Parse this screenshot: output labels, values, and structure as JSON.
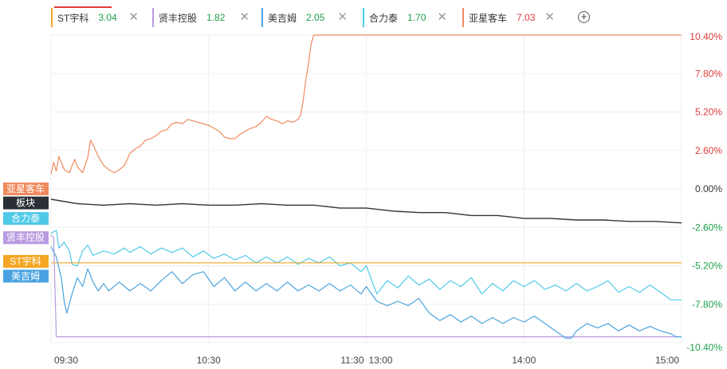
{
  "tabs": [
    {
      "name": "ST宇科",
      "value": "3.04",
      "color": "#f5a623",
      "value_color": "#1e9e4a"
    },
    {
      "name": "贤丰控股",
      "value": "1.82",
      "color": "#b89be0",
      "value_color": "#1e9e4a"
    },
    {
      "name": "美吉姆",
      "value": "2.05",
      "color": "#4aa3e0",
      "value_color": "#1e9e4a"
    },
    {
      "name": "合力泰",
      "value": "1.70",
      "color": "#4fc9e8",
      "value_color": "#1e9e4a"
    },
    {
      "name": "亚星客车",
      "value": "7.03",
      "color": "#f08a5d",
      "value_color": "#e03a3a"
    }
  ],
  "add_label": "+",
  "close_label": "✕",
  "chart_data": {
    "type": "line",
    "y_unit": "percent",
    "ylim": [
      -10.4,
      10.4
    ],
    "yticks": [
      {
        "label": "10.40%",
        "value": 10.4
      },
      {
        "label": "7.80%",
        "value": 7.8
      },
      {
        "label": "5.20%",
        "value": 5.2
      },
      {
        "label": "2.60%",
        "value": 2.6
      },
      {
        "label": "0.00%",
        "value": 0
      },
      {
        "label": "-2.60%",
        "value": -2.6
      },
      {
        "label": "-5.20%",
        "value": -5.2
      },
      {
        "label": "-7.80%",
        "value": -7.8
      },
      {
        "label": "-10.40%",
        "value": -10.4
      }
    ],
    "ytick_colors": {
      "positive": "#e03a3a",
      "zero": "#333333",
      "negative": "#1e9e4a"
    },
    "xticks": [
      {
        "label": "09:30",
        "minute": 0
      },
      {
        "label": "10:30",
        "minute": 60
      },
      {
        "label": "11:30",
        "minute": 120
      },
      {
        "label": "13:00",
        "minute": 120
      },
      {
        "label": "14:00",
        "minute": 180
      },
      {
        "label": "15:00",
        "minute": 240
      }
    ],
    "x_range_minutes": [
      0,
      240
    ],
    "grid": true,
    "series": [
      {
        "name": "亚星客车",
        "color": "#f08a5d",
        "points": [
          [
            0,
            1.0
          ],
          [
            1,
            1.8
          ],
          [
            2,
            1.2
          ],
          [
            3,
            2.2
          ],
          [
            5,
            1.3
          ],
          [
            7,
            1.1
          ],
          [
            9,
            2.0
          ],
          [
            10,
            1.5
          ],
          [
            12,
            1.1
          ],
          [
            14,
            2.1
          ],
          [
            15,
            3.3
          ],
          [
            16,
            3.0
          ],
          [
            18,
            2.2
          ],
          [
            20,
            1.6
          ],
          [
            22,
            1.3
          ],
          [
            24,
            1.1
          ],
          [
            26,
            1.3
          ],
          [
            28,
            1.6
          ],
          [
            30,
            2.4
          ],
          [
            32,
            2.7
          ],
          [
            34,
            2.9
          ],
          [
            36,
            3.3
          ],
          [
            38,
            3.4
          ],
          [
            40,
            3.6
          ],
          [
            42,
            3.9
          ],
          [
            44,
            4.0
          ],
          [
            46,
            4.4
          ],
          [
            48,
            4.5
          ],
          [
            50,
            4.4
          ],
          [
            52,
            4.7
          ],
          [
            54,
            4.6
          ],
          [
            56,
            4.5
          ],
          [
            58,
            4.4
          ],
          [
            60,
            4.3
          ],
          [
            62,
            4.1
          ],
          [
            64,
            3.9
          ],
          [
            66,
            3.5
          ],
          [
            68,
            3.4
          ],
          [
            70,
            3.4
          ],
          [
            72,
            3.7
          ],
          [
            74,
            3.9
          ],
          [
            76,
            4.1
          ],
          [
            78,
            4.2
          ],
          [
            80,
            4.5
          ],
          [
            82,
            4.9
          ],
          [
            84,
            4.7
          ],
          [
            86,
            4.6
          ],
          [
            88,
            4.4
          ],
          [
            90,
            4.6
          ],
          [
            92,
            4.5
          ],
          [
            94,
            4.7
          ],
          [
            95,
            5.0
          ],
          [
            96,
            6.0
          ],
          [
            97,
            7.4
          ],
          [
            98,
            8.5
          ],
          [
            99,
            9.8
          ],
          [
            100,
            10.4
          ],
          [
            120,
            10.4
          ],
          [
            240,
            10.4
          ]
        ]
      },
      {
        "name": "板块",
        "color": "#333333",
        "points": [
          [
            0,
            -0.7
          ],
          [
            10,
            -1.0
          ],
          [
            20,
            -1.1
          ],
          [
            30,
            -1.0
          ],
          [
            40,
            -1.1
          ],
          [
            50,
            -1.0
          ],
          [
            60,
            -1.1
          ],
          [
            70,
            -1.1
          ],
          [
            80,
            -1.0
          ],
          [
            90,
            -1.1
          ],
          [
            100,
            -1.1
          ],
          [
            110,
            -1.3
          ],
          [
            120,
            -1.3
          ],
          [
            130,
            -1.5
          ],
          [
            140,
            -1.6
          ],
          [
            150,
            -1.6
          ],
          [
            160,
            -1.8
          ],
          [
            170,
            -1.8
          ],
          [
            180,
            -2.0
          ],
          [
            190,
            -2.0
          ],
          [
            200,
            -2.1
          ],
          [
            210,
            -2.1
          ],
          [
            220,
            -2.2
          ],
          [
            230,
            -2.2
          ],
          [
            240,
            -2.3
          ]
        ]
      },
      {
        "name": "合力泰",
        "color": "#4fc9e8",
        "points": [
          [
            0,
            -3.0
          ],
          [
            2,
            -2.8
          ],
          [
            3,
            -4.0
          ],
          [
            5,
            -3.6
          ],
          [
            7,
            -4.2
          ],
          [
            8,
            -5.1
          ],
          [
            10,
            -5.2
          ],
          [
            12,
            -4.2
          ],
          [
            14,
            -3.8
          ],
          [
            16,
            -4.5
          ],
          [
            20,
            -4.2
          ],
          [
            24,
            -4.4
          ],
          [
            28,
            -4.0
          ],
          [
            30,
            -4.3
          ],
          [
            34,
            -3.9
          ],
          [
            38,
            -4.4
          ],
          [
            42,
            -4.0
          ],
          [
            46,
            -4.3
          ],
          [
            50,
            -4.0
          ],
          [
            54,
            -4.6
          ],
          [
            58,
            -4.2
          ],
          [
            62,
            -4.7
          ],
          [
            66,
            -4.4
          ],
          [
            70,
            -4.8
          ],
          [
            74,
            -4.5
          ],
          [
            78,
            -5.0
          ],
          [
            82,
            -4.6
          ],
          [
            86,
            -5.0
          ],
          [
            90,
            -4.6
          ],
          [
            94,
            -5.1
          ],
          [
            98,
            -4.7
          ],
          [
            102,
            -5.0
          ],
          [
            106,
            -4.6
          ],
          [
            110,
            -5.2
          ],
          [
            114,
            -5.0
          ],
          [
            118,
            -5.6
          ],
          [
            120,
            -5.2
          ],
          [
            124,
            -7.1
          ],
          [
            128,
            -6.2
          ],
          [
            132,
            -6.7
          ],
          [
            136,
            -5.9
          ],
          [
            140,
            -6.5
          ],
          [
            144,
            -6.1
          ],
          [
            148,
            -6.8
          ],
          [
            152,
            -6.2
          ],
          [
            156,
            -6.6
          ],
          [
            160,
            -6.0
          ],
          [
            164,
            -7.1
          ],
          [
            168,
            -6.4
          ],
          [
            172,
            -6.9
          ],
          [
            176,
            -6.2
          ],
          [
            180,
            -6.6
          ],
          [
            184,
            -6.2
          ],
          [
            188,
            -6.8
          ],
          [
            192,
            -6.5
          ],
          [
            196,
            -6.9
          ],
          [
            200,
            -6.4
          ],
          [
            204,
            -6.9
          ],
          [
            208,
            -6.6
          ],
          [
            212,
            -6.2
          ],
          [
            216,
            -7.0
          ],
          [
            220,
            -6.6
          ],
          [
            224,
            -7.0
          ],
          [
            228,
            -6.5
          ],
          [
            232,
            -7.0
          ],
          [
            236,
            -7.5
          ],
          [
            240,
            -7.5
          ]
        ]
      },
      {
        "name": "贤丰控股",
        "color": "#b89be0",
        "points": [
          [
            0,
            -3.1
          ],
          [
            1,
            -3.3
          ],
          [
            2,
            -10.0
          ],
          [
            120,
            -10.0
          ],
          [
            240,
            -10.0
          ]
        ]
      },
      {
        "name": "ST宇科",
        "color": "#f5a623",
        "points": [
          [
            0,
            -5.0
          ],
          [
            240,
            -5.0
          ]
        ]
      },
      {
        "name": "美吉姆",
        "color": "#4aa3e0",
        "points": [
          [
            0,
            -3.9
          ],
          [
            2,
            -4.6
          ],
          [
            4,
            -6.1
          ],
          [
            5,
            -7.6
          ],
          [
            6,
            -8.4
          ],
          [
            8,
            -7.1
          ],
          [
            10,
            -6.0
          ],
          [
            12,
            -6.6
          ],
          [
            14,
            -5.4
          ],
          [
            16,
            -6.3
          ],
          [
            18,
            -6.9
          ],
          [
            20,
            -6.4
          ],
          [
            22,
            -6.9
          ],
          [
            26,
            -6.3
          ],
          [
            30,
            -6.9
          ],
          [
            34,
            -6.4
          ],
          [
            38,
            -6.9
          ],
          [
            42,
            -6.2
          ],
          [
            46,
            -5.6
          ],
          [
            50,
            -6.4
          ],
          [
            54,
            -5.8
          ],
          [
            58,
            -5.6
          ],
          [
            62,
            -6.6
          ],
          [
            66,
            -6.0
          ],
          [
            70,
            -6.9
          ],
          [
            74,
            -6.3
          ],
          [
            78,
            -6.9
          ],
          [
            82,
            -6.4
          ],
          [
            86,
            -6.9
          ],
          [
            90,
            -6.3
          ],
          [
            94,
            -6.9
          ],
          [
            98,
            -6.5
          ],
          [
            102,
            -6.9
          ],
          [
            106,
            -6.4
          ],
          [
            110,
            -6.9
          ],
          [
            114,
            -6.5
          ],
          [
            118,
            -7.1
          ],
          [
            120,
            -6.6
          ],
          [
            124,
            -7.6
          ],
          [
            128,
            -7.9
          ],
          [
            132,
            -7.6
          ],
          [
            136,
            -7.9
          ],
          [
            140,
            -7.4
          ],
          [
            144,
            -8.4
          ],
          [
            148,
            -8.9
          ],
          [
            152,
            -8.5
          ],
          [
            156,
            -9.0
          ],
          [
            160,
            -8.6
          ],
          [
            164,
            -9.1
          ],
          [
            168,
            -8.7
          ],
          [
            172,
            -9.1
          ],
          [
            176,
            -8.7
          ],
          [
            180,
            -9.0
          ],
          [
            184,
            -8.6
          ],
          [
            188,
            -9.1
          ],
          [
            192,
            -9.6
          ],
          [
            196,
            -10.1
          ],
          [
            198,
            -10.1
          ],
          [
            200,
            -9.6
          ],
          [
            204,
            -9.1
          ],
          [
            208,
            -9.4
          ],
          [
            212,
            -9.1
          ],
          [
            216,
            -9.6
          ],
          [
            220,
            -9.2
          ],
          [
            224,
            -9.6
          ],
          [
            228,
            -9.3
          ],
          [
            232,
            -9.6
          ],
          [
            236,
            -9.8
          ],
          [
            238,
            -10.0
          ],
          [
            240,
            -10.0
          ]
        ]
      }
    ],
    "legend_boxes": [
      {
        "name": "亚星客车",
        "color": "#f08a5d",
        "value": 0
      },
      {
        "name": "板块",
        "color": "#2a2f36",
        "value": -0.95
      },
      {
        "name": "合力泰",
        "color": "#4fc9e8",
        "value": -2.0
      },
      {
        "name": "贤丰控股",
        "color": "#b89be0",
        "value": -3.3
      },
      {
        "name": "ST宇科",
        "color": "#f5a623",
        "value": -4.9
      },
      {
        "name": "美吉姆",
        "color": "#4aa3e0",
        "value": -5.9
      }
    ]
  }
}
